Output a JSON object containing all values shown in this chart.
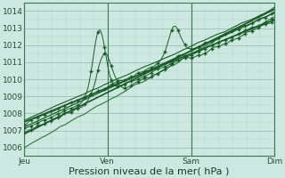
{
  "bg_color": "#cce8e0",
  "plot_bg_color": "#cce8e0",
  "grid_color_major": "#9abfb5",
  "grid_color_minor": "#b5d5cc",
  "line_color_dark": "#1a5c28",
  "line_color_med": "#2a7a3a",
  "ylim": [
    1005.5,
    1014.5
  ],
  "yticks": [
    1006,
    1007,
    1008,
    1009,
    1010,
    1011,
    1012,
    1013,
    1014
  ],
  "xlabel": "Pression niveau de la mer( hPa )",
  "xlabel_fontsize": 8,
  "tick_fontsize": 6.5,
  "day_labels": [
    "Jeu",
    "Ven",
    "Sam",
    "Dim"
  ],
  "day_positions": [
    0.0,
    0.333,
    0.667,
    1.0
  ],
  "xlim": [
    0.0,
    1.0
  ],
  "num_points": 300
}
